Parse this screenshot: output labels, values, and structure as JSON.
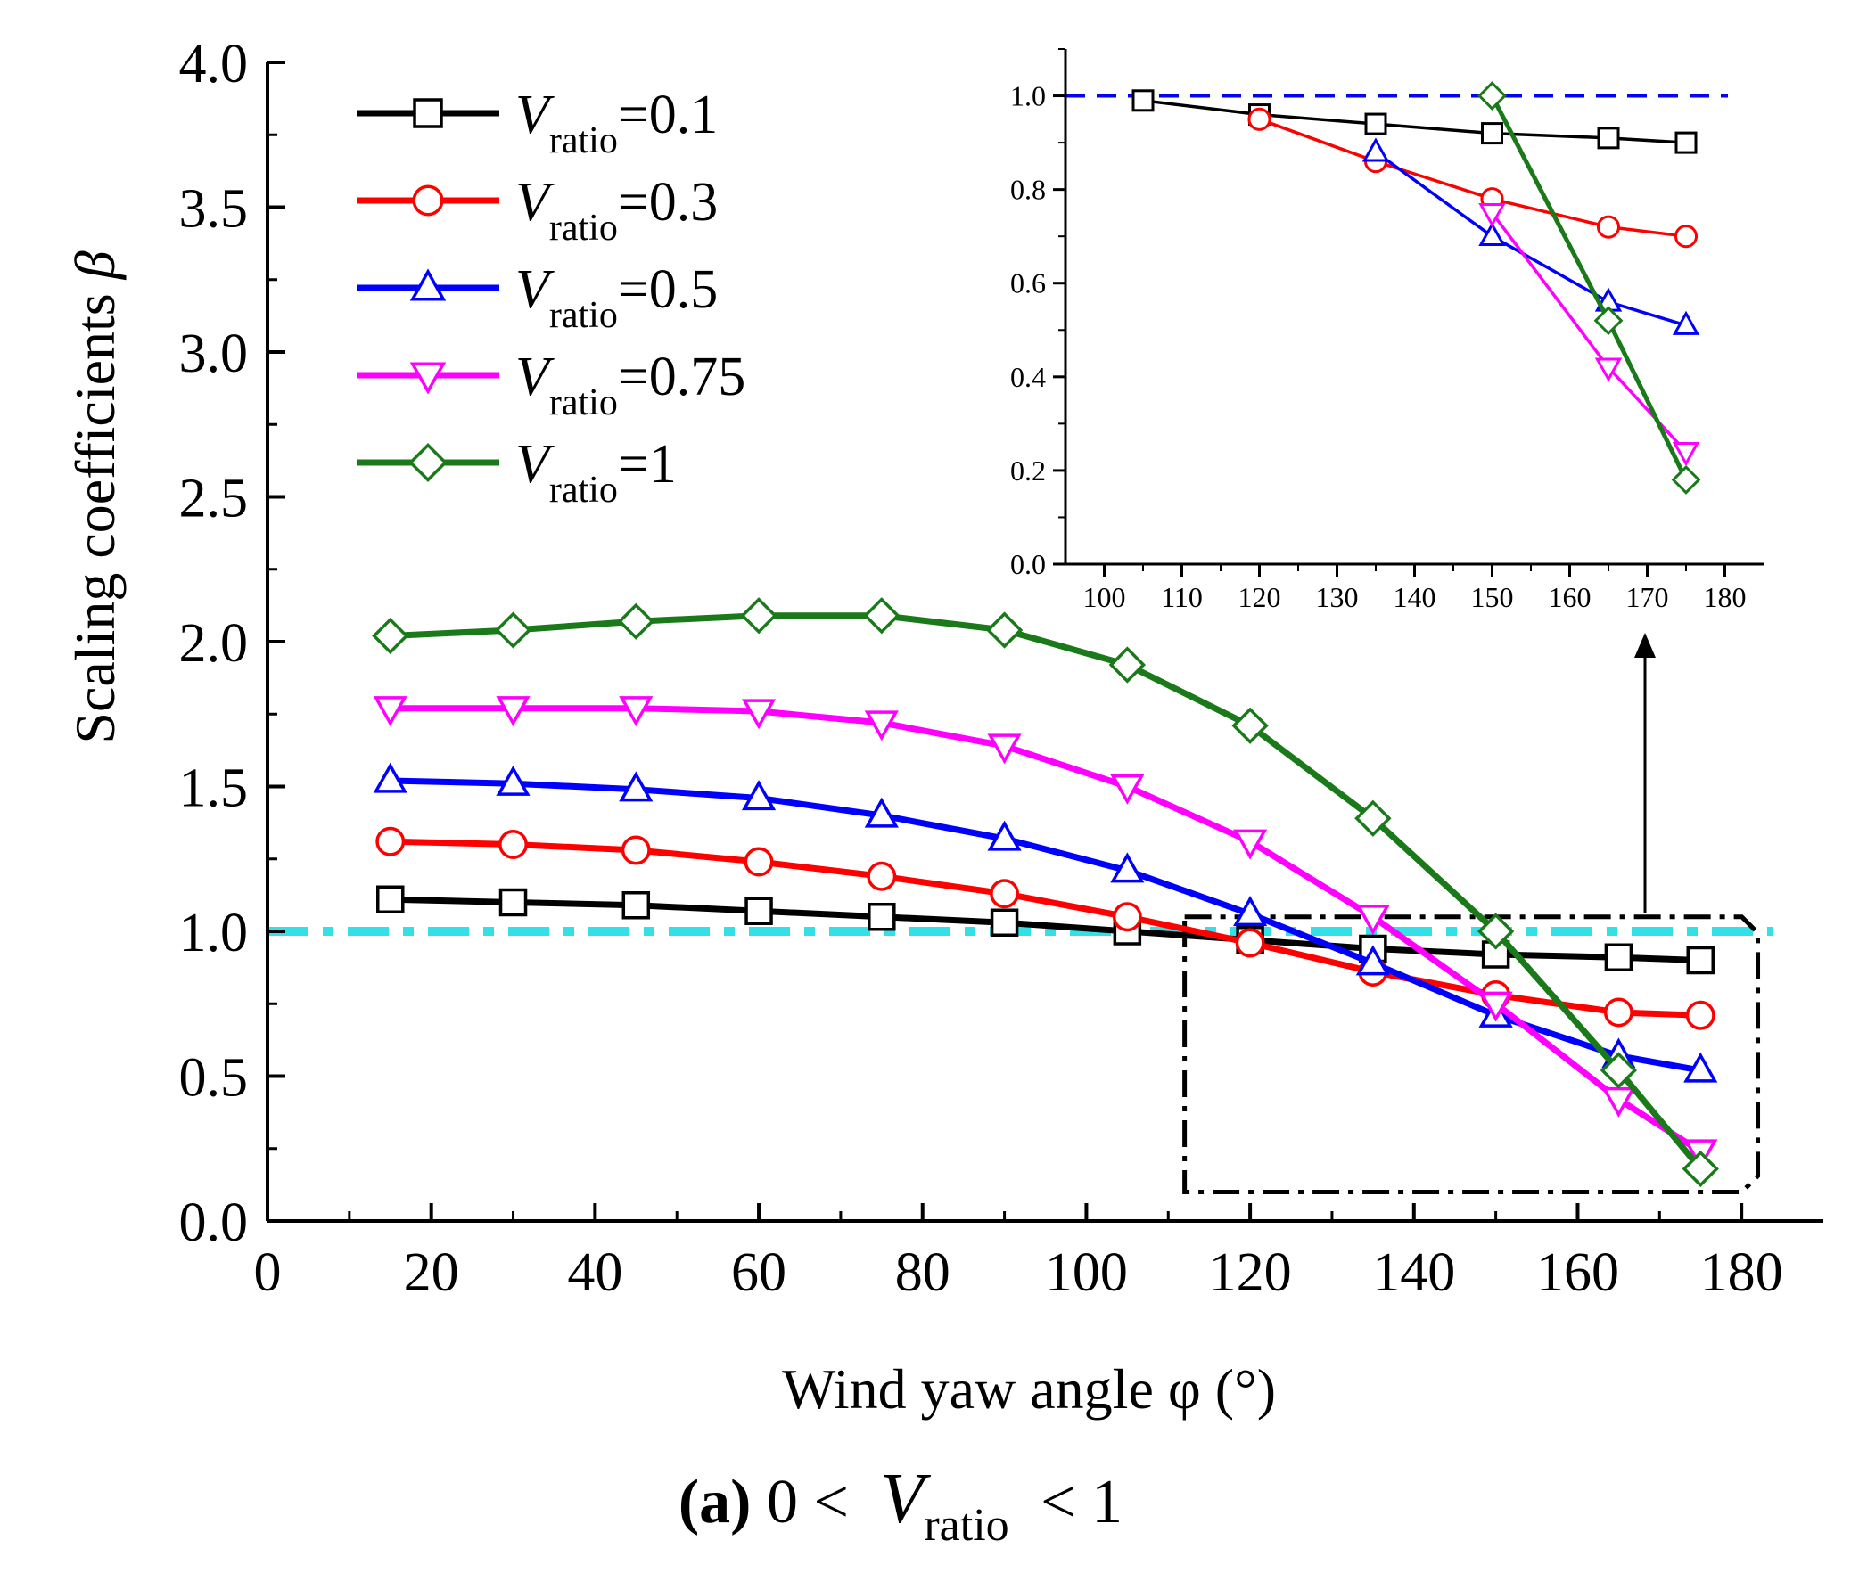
{
  "chart_data": [
    {
      "id": "main",
      "type": "line",
      "xlabel": "Wind yaw angle φ (°)",
      "ylabel": "Scaling coefficients",
      "ylabel_symbol": "β",
      "xlim": [
        0,
        190
      ],
      "ylim": [
        0,
        4
      ],
      "xticks": [
        "0",
        "20",
        "40",
        "60",
        "80",
        "100",
        "120",
        "140",
        "160",
        "180"
      ],
      "yticks": [
        "0.0",
        "0.5",
        "1.0",
        "1.5",
        "2.0",
        "2.5",
        "3.0",
        "3.5",
        "4.0"
      ],
      "x": [
        15,
        30,
        45,
        60,
        75,
        90,
        105,
        120,
        135,
        150,
        165,
        175
      ],
      "reference_line": {
        "y": 1.0,
        "color": "#33e0e8",
        "style": "dash-dot"
      },
      "zoom_box": {
        "x": [
          112,
          182
        ],
        "y": [
          0.1,
          1.05
        ]
      },
      "legend": {
        "placement": "top-left"
      },
      "series": [
        {
          "name_main": "V",
          "name_sub": "ratio",
          "name_value": "=0.1",
          "color": "#000000",
          "marker": "square",
          "values": [
            1.11,
            1.1,
            1.09,
            1.07,
            1.05,
            1.03,
            1.0,
            0.97,
            0.94,
            0.92,
            0.91,
            0.9
          ]
        },
        {
          "name_main": "V",
          "name_sub": "ratio",
          "name_value": "=0.3",
          "color": "#ff0000",
          "marker": "circle",
          "values": [
            1.31,
            1.3,
            1.28,
            1.24,
            1.19,
            1.13,
            1.05,
            0.96,
            0.86,
            0.78,
            0.72,
            0.71
          ]
        },
        {
          "name_main": "V",
          "name_sub": "ratio",
          "name_value": "=0.5",
          "color": "#0000ff",
          "marker": "triangle-up",
          "values": [
            1.52,
            1.51,
            1.49,
            1.46,
            1.4,
            1.32,
            1.21,
            1.06,
            0.89,
            0.71,
            0.57,
            0.52
          ]
        },
        {
          "name_main": "V",
          "name_sub": "ratio",
          "name_value": "=0.75",
          "color": "#ff00ff",
          "marker": "triangle-down",
          "values": [
            1.77,
            1.77,
            1.77,
            1.76,
            1.72,
            1.64,
            1.5,
            1.31,
            1.05,
            0.75,
            0.42,
            0.24
          ]
        },
        {
          "name_main": "V",
          "name_sub": "ratio",
          "name_value": "=1",
          "color": "#1a7a1a",
          "marker": "diamond",
          "values": [
            2.02,
            2.04,
            2.07,
            2.09,
            2.09,
            2.04,
            1.92,
            1.71,
            1.39,
            1.0,
            0.52,
            0.18
          ]
        }
      ]
    },
    {
      "id": "inset",
      "type": "line",
      "xlim": [
        95,
        185
      ],
      "ylim": [
        0,
        1.1
      ],
      "xticks": [
        "100",
        "110",
        "120",
        "130",
        "140",
        "150",
        "160",
        "170",
        "180"
      ],
      "yticks": [
        "0.0",
        "0.2",
        "0.4",
        "0.6",
        "0.8",
        "1.0"
      ],
      "reference_line": {
        "y": 1.0,
        "color": "#0000ff",
        "style": "dash"
      },
      "series": [
        {
          "name": "Vratio=0.1",
          "color": "#000000",
          "marker": "square",
          "x": [
            105,
            120,
            135,
            150,
            165,
            175
          ],
          "values": [
            0.99,
            0.96,
            0.94,
            0.92,
            0.91,
            0.9
          ]
        },
        {
          "name": "Vratio=0.3",
          "color": "#ff0000",
          "marker": "circle",
          "x": [
            120,
            135,
            150,
            165,
            175
          ],
          "values": [
            0.95,
            0.86,
            0.78,
            0.72,
            0.7
          ]
        },
        {
          "name": "Vratio=0.5",
          "color": "#0000ff",
          "marker": "triangle-up",
          "x": [
            135,
            150,
            165,
            175
          ],
          "values": [
            0.88,
            0.7,
            0.56,
            0.51
          ]
        },
        {
          "name": "Vratio=0.75",
          "color": "#ff00ff",
          "marker": "triangle-down",
          "x": [
            150,
            165,
            175
          ],
          "values": [
            0.75,
            0.42,
            0.24
          ]
        },
        {
          "name": "Vratio=1",
          "color": "#1a7a1a",
          "marker": "diamond",
          "x": [
            150,
            165,
            175
          ],
          "values": [
            1.0,
            0.52,
            0.18
          ]
        }
      ]
    }
  ],
  "caption": {
    "label": "(a)",
    "prefix": "0 <",
    "var_main": "V",
    "var_sub": "ratio",
    "suffix": "< 1"
  }
}
